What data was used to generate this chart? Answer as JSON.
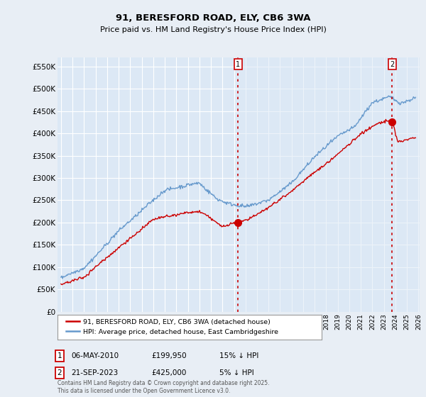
{
  "title": "91, BERESFORD ROAD, ELY, CB6 3WA",
  "subtitle": "Price paid vs. HM Land Registry's House Price Index (HPI)",
  "ylabel_ticks": [
    "£0",
    "£50K",
    "£100K",
    "£150K",
    "£200K",
    "£250K",
    "£300K",
    "£350K",
    "£400K",
    "£450K",
    "£500K",
    "£550K"
  ],
  "ytick_values": [
    0,
    50000,
    100000,
    150000,
    200000,
    250000,
    300000,
    350000,
    400000,
    450000,
    500000,
    550000
  ],
  "x_start_year": 1995,
  "x_end_year": 2026,
  "vline1_year": 2010.35,
  "vline2_year": 2023.72,
  "marker1_val": 199950,
  "marker2_val": 425000,
  "legend1_label": "91, BERESFORD ROAD, ELY, CB6 3WA (detached house)",
  "legend2_label": "HPI: Average price, detached house, East Cambridgeshire",
  "ann1_date": "06-MAY-2010",
  "ann1_price": "£199,950",
  "ann1_hpi": "15% ↓ HPI",
  "ann2_date": "21-SEP-2023",
  "ann2_price": "£425,000",
  "ann2_hpi": "5% ↓ HPI",
  "footer": "Contains HM Land Registry data © Crown copyright and database right 2025.\nThis data is licensed under the Open Government Licence v3.0.",
  "line_red": "#cc0000",
  "line_blue": "#6699cc",
  "fill_blue": "#dce8f5",
  "bg_color": "#e8eef5",
  "plot_bg": "#dce8f5",
  "grid_color": "#ffffff",
  "vline_color": "#cc0000",
  "ann_box_color": "#cc0000"
}
